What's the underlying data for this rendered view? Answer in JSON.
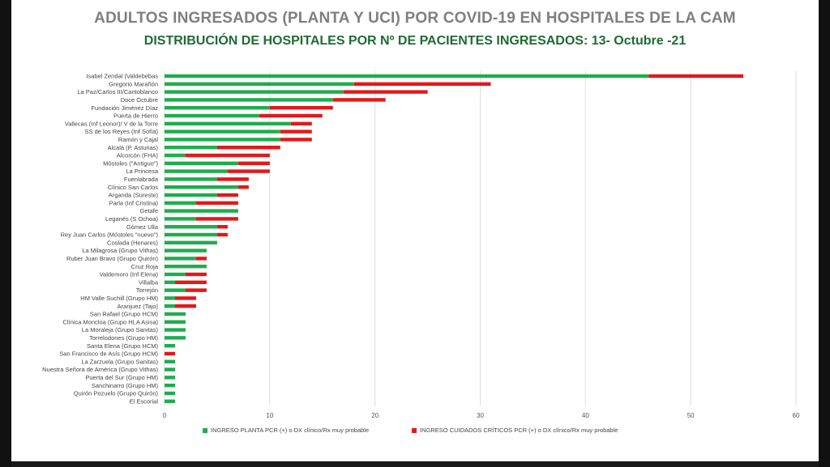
{
  "title": "ADULTOS INGRESADOS (PLANTA Y UCI) POR COVID-19 EN HOSPITALES DE LA CAM",
  "subtitle": "DISTRIBUCIÓN DE HOSPITALES POR Nº DE PACIENTES INGRESADOS: 13- Octubre -21",
  "colors": {
    "planta": "#1fad4d",
    "uci": "#e31818",
    "grid": "#dcdcdc"
  },
  "chart_data": {
    "type": "bar",
    "orientation": "horizontal",
    "stacked": true,
    "xlim": [
      0,
      60
    ],
    "xticks": [
      "0",
      "10",
      "20",
      "30",
      "40",
      "50",
      "60"
    ],
    "grid": true,
    "legend_position": "bottom",
    "categories": [
      "Isabel Zendal (Valdebebas",
      "Gregorio Marañón",
      "La Paz/Carlos III/Cantoblanco",
      "Doce Octubre",
      "Fundación Jiménez Díaz",
      "Puerta de Hierro",
      "Vallecas (Inf Leonor)/ V de la Torre",
      "SS de los Reyes (Inf Sofía)",
      "Ramón y Cajal",
      "Alcalá (P. Asturias)",
      "Alcorcón (FHA)",
      "Móstoles (\"Antiguo\")",
      "La Princesa",
      "Fuenlabrada",
      "Clínico San Carlos",
      "Arganda (Sureste)",
      "Parla (Inf Cristina)",
      "Getafe",
      "Leganés (S Ochoa)",
      "Gómez Ulla",
      "Rey Juan Carlos (Móstoles \"nuevo\")",
      "Coslada (Henares)",
      "La Milagrosa (Grupo Vithas)",
      "Ruber Juan Bravo (Grupo Quirón)",
      "Cruz Roja",
      "Valdemoro (Inf Elena)",
      "Villalba",
      "Torrejón",
      "HM Valle Suchill (Grupo HM)",
      "Aranjuez (Tajo)",
      "San Rafael (Grupo HCM)",
      "Clínica Moncloa (Grupo HLA Asisa)",
      "La Moraleja (Grupo Sanitas)",
      "Torrelodones (Grupo HM)",
      "Santa Elena (Grupo HCM)",
      "San Francisco de Asís (Grupo HCM)",
      "La Zarzuela (Grupo Sanitas)",
      "Nuestra Señora de América (Grupo Vithas)",
      "Puerta del Sur (Grupo HM)",
      "Sanchinarro (Grupo HM)",
      "Quirón Pozuelo (Grupo Quirón)",
      "El Escorial"
    ],
    "series": [
      {
        "name": "INGRESO PLANTA PCR (+) o DX clínico/Rx muy probable",
        "values": [
          46,
          18,
          17,
          16,
          10,
          9,
          12,
          11,
          11,
          5,
          2,
          7,
          6,
          5,
          7,
          5,
          3,
          7,
          3,
          5,
          5,
          5,
          4,
          3,
          4,
          2,
          1,
          2,
          1,
          1,
          2,
          2,
          2,
          2,
          1,
          0,
          1,
          1,
          1,
          1,
          1,
          1
        ]
      },
      {
        "name": "INGRESO CUIDADOS CRÍTICOS PCR (+) o DX clínico/Rx muy probable",
        "values": [
          9,
          13,
          8,
          5,
          6,
          6,
          2,
          3,
          3,
          6,
          8,
          3,
          4,
          3,
          1,
          2,
          4,
          0,
          4,
          1,
          1,
          0,
          0,
          1,
          0,
          2,
          3,
          2,
          2,
          2,
          0,
          0,
          0,
          0,
          0,
          1,
          0,
          0,
          0,
          0,
          0,
          0
        ]
      }
    ]
  }
}
